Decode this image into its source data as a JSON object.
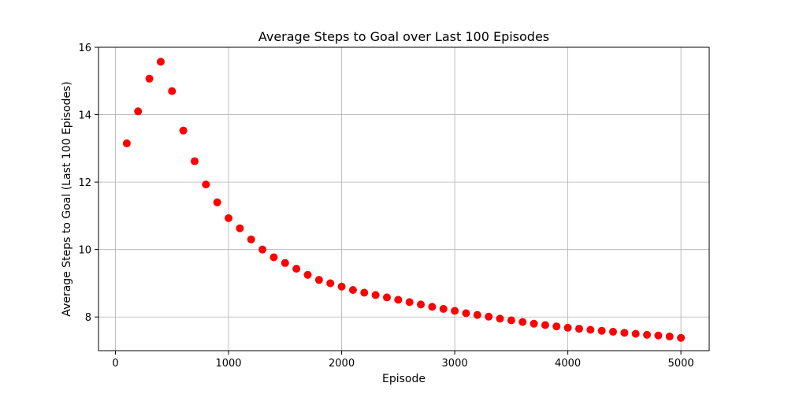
{
  "chart_data": {
    "type": "scatter",
    "title": "Average Steps to Goal over Last 100 Episodes",
    "xlabel": "Episode",
    "ylabel": "Average Steps to Goal (Last 100 Episodes)",
    "xlim": [
      -150,
      5250
    ],
    "ylim": [
      7.0,
      16.0
    ],
    "xticks": [
      0,
      1000,
      2000,
      3000,
      4000,
      5000
    ],
    "yticks": [
      8,
      10,
      12,
      14,
      16
    ],
    "grid": true,
    "marker_color": "#ff0000",
    "series": [
      {
        "x": [
          100,
          200,
          300,
          400,
          500,
          600,
          700,
          800,
          900,
          1000,
          1100,
          1200,
          1300,
          1400,
          1500,
          1600,
          1700,
          1800,
          1900,
          2000,
          2100,
          2200,
          2300,
          2400,
          2500,
          2600,
          2700,
          2800,
          2900,
          3000,
          3100,
          3200,
          3300,
          3400,
          3500,
          3600,
          3700,
          3800,
          3900,
          4000,
          4100,
          4200,
          4300,
          4400,
          4500,
          4600,
          4700,
          4800,
          4900,
          5000
        ],
        "y": [
          13.15,
          14.1,
          15.07,
          15.57,
          14.7,
          13.53,
          12.62,
          11.93,
          11.4,
          10.93,
          10.63,
          10.3,
          10.0,
          9.77,
          9.6,
          9.43,
          9.25,
          9.1,
          9.0,
          8.9,
          8.8,
          8.72,
          8.65,
          8.58,
          8.51,
          8.44,
          8.37,
          8.3,
          8.24,
          8.18,
          8.11,
          8.06,
          8.01,
          7.95,
          7.9,
          7.85,
          7.8,
          7.76,
          7.72,
          7.68,
          7.65,
          7.62,
          7.59,
          7.56,
          7.53,
          7.5,
          7.47,
          7.45,
          7.42,
          7.38
        ]
      }
    ]
  }
}
